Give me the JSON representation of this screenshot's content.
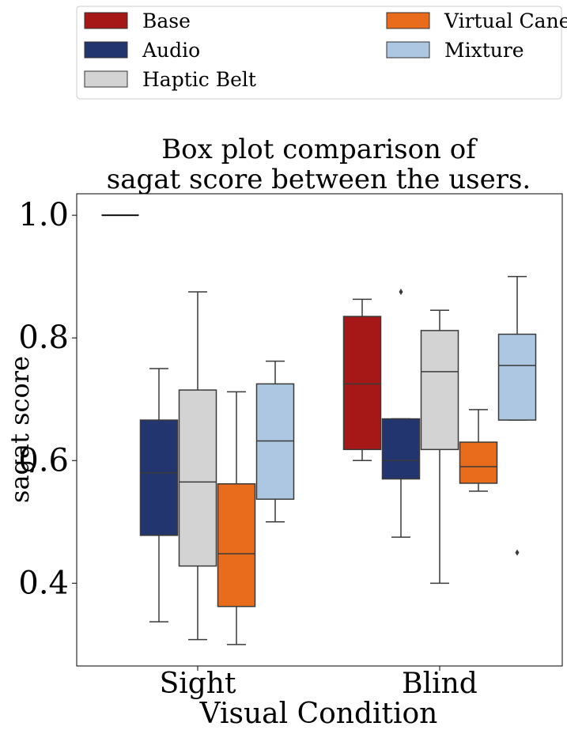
{
  "chart_data": {
    "type": "box",
    "title_lines": [
      "Box plot comparison of",
      "sagat score between the users."
    ],
    "xlabel": "Visual Condition",
    "ylabel": "sagat score",
    "categories": [
      "Sight",
      "Blind"
    ],
    "ylim": [
      0.265,
      1.035
    ],
    "yticks": [
      "0.4",
      "0.6",
      "0.8",
      "1.0"
    ],
    "grid": false,
    "legend": {
      "placement": "top",
      "columns": 2
    },
    "series": [
      {
        "name": "Base",
        "color": "#a61717",
        "boxes": [
          {
            "category": "Sight",
            "whislo": 1.0,
            "q1": 1.0,
            "med": 1.0,
            "q3": 1.0,
            "whishi": 1.0,
            "fliers": []
          },
          {
            "category": "Blind",
            "whislo": 0.6,
            "q1": 0.618,
            "med": 0.725,
            "q3": 0.835,
            "whishi": 0.863,
            "fliers": []
          }
        ]
      },
      {
        "name": "Audio",
        "color": "#22356e",
        "boxes": [
          {
            "category": "Sight",
            "whislo": 0.337,
            "q1": 0.478,
            "med": 0.58,
            "q3": 0.666,
            "whishi": 0.75,
            "fliers": []
          },
          {
            "category": "Blind",
            "whislo": 0.475,
            "q1": 0.57,
            "med": 0.6,
            "q3": 0.668,
            "whishi": 0.668,
            "fliers": [
              0.875
            ]
          }
        ]
      },
      {
        "name": "Haptic Belt",
        "color": "#d3d3d3",
        "boxes": [
          {
            "category": "Sight",
            "whislo": 0.308,
            "q1": 0.428,
            "med": 0.565,
            "q3": 0.715,
            "whishi": 0.875,
            "fliers": []
          },
          {
            "category": "Blind",
            "whislo": 0.4,
            "q1": 0.618,
            "med": 0.745,
            "q3": 0.812,
            "whishi": 0.845,
            "fliers": []
          }
        ]
      },
      {
        "name": "Virtual Cane",
        "color": "#e96b1c",
        "boxes": [
          {
            "category": "Sight",
            "whislo": 0.3,
            "q1": 0.362,
            "med": 0.448,
            "q3": 0.562,
            "whishi": 0.712,
            "fliers": []
          },
          {
            "category": "Blind",
            "whislo": 0.55,
            "q1": 0.563,
            "med": 0.59,
            "q3": 0.63,
            "whishi": 0.683,
            "fliers": []
          }
        ]
      },
      {
        "name": "Mixture",
        "color": "#adc6e2",
        "boxes": [
          {
            "category": "Sight",
            "whislo": 0.5,
            "q1": 0.537,
            "med": 0.632,
            "q3": 0.725,
            "whishi": 0.762,
            "fliers": []
          },
          {
            "category": "Blind",
            "whislo": 0.666,
            "q1": 0.666,
            "med": 0.755,
            "q3": 0.806,
            "whishi": 0.9,
            "fliers": [
              0.45
            ]
          }
        ]
      }
    ]
  }
}
